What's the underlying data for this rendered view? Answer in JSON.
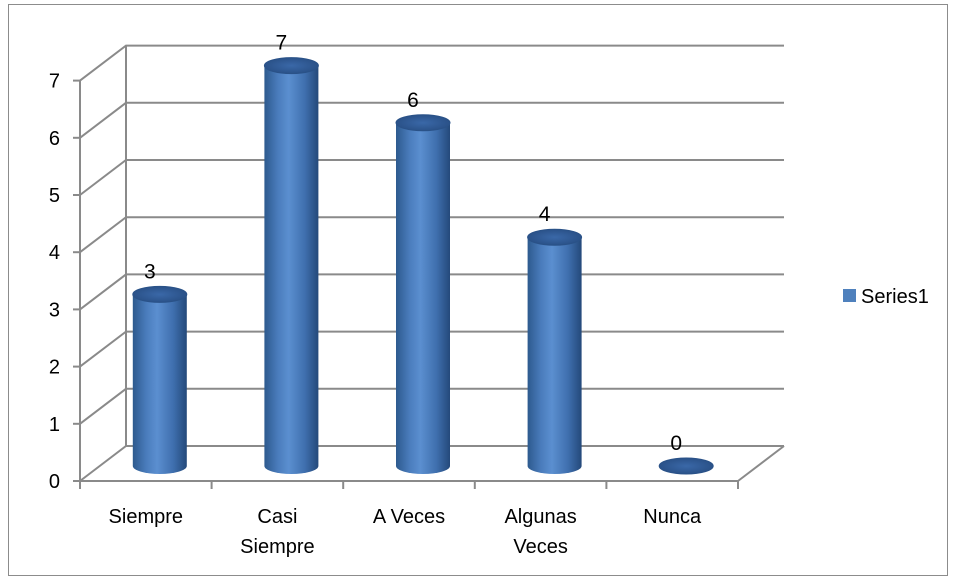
{
  "chart_data": {
    "type": "bar",
    "style": "3d-cylinder",
    "title": "",
    "xlabel": "",
    "ylabel": "",
    "categories": [
      "Siempre",
      "Casi Siempre",
      "A Veces",
      "Algunas Veces",
      "Nunca"
    ],
    "category_lines": [
      [
        "Siempre"
      ],
      [
        "Casi",
        "Siempre"
      ],
      [
        "A Veces"
      ],
      [
        "Algunas",
        "Veces"
      ],
      [
        "Nunca"
      ]
    ],
    "series": [
      {
        "name": "Series1",
        "values": [
          3,
          7,
          6,
          4,
          0
        ],
        "color": "#4F81BD"
      }
    ],
    "ylim": [
      0,
      7
    ],
    "yticks": [
      "0",
      "1",
      "2",
      "3",
      "4",
      "5",
      "6",
      "7"
    ],
    "grid": true,
    "legend_position": "right",
    "data_labels": true
  }
}
